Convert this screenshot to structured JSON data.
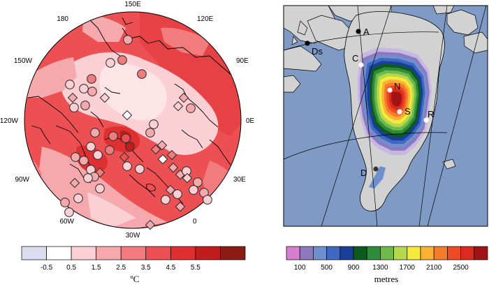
{
  "left_map": {
    "longitude_labels": {
      "top": "150E",
      "top_right": "120E",
      "right_top": "90E",
      "right": "0E",
      "right_bottom": "30E",
      "bottom_right": "0",
      "bottom": "30W",
      "bottom_left": "60W",
      "left_bottom": "90W",
      "left": "120W",
      "left_top": "150W",
      "top_left": "180"
    },
    "colorbar": {
      "tick_labels": [
        "-0.5",
        "0.5",
        "1.5",
        "2.5",
        "3.5",
        "4.5",
        "5.5"
      ],
      "units": "ºC",
      "colors": [
        "#dcdcf0",
        "#ffffff",
        "#fbd0d4",
        "#f6a9ad",
        "#f27b7e",
        "#ec5052",
        "#e02f30",
        "#c21d1d",
        "#8b1b14"
      ]
    },
    "markers": [
      {
        "shape": "circle",
        "level": 3
      },
      {
        "shape": "circle",
        "level": 2
      },
      {
        "shape": "circle",
        "level": 4
      },
      {
        "shape": "circle",
        "level": 4
      },
      {
        "shape": "circle",
        "level": 2
      },
      {
        "shape": "circle",
        "level": 4
      },
      {
        "shape": "circle",
        "level": 2
      },
      {
        "shape": "circle",
        "level": 3
      },
      {
        "shape": "diamond",
        "level": 3
      },
      {
        "shape": "diamond",
        "level": 2
      },
      {
        "shape": "circle",
        "level": 2
      },
      {
        "shape": "circle",
        "level": 3
      },
      {
        "shape": "diamond",
        "level": 1
      },
      {
        "shape": "diamond",
        "level": 3
      },
      {
        "shape": "diamond",
        "level": 2
      },
      {
        "shape": "circle",
        "level": 3
      },
      {
        "shape": "circle",
        "level": 2
      },
      {
        "shape": "circle",
        "level": 3
      },
      {
        "shape": "circle",
        "level": 4
      },
      {
        "shape": "circle",
        "level": 5
      },
      {
        "shape": "circle",
        "level": 7
      },
      {
        "shape": "circle",
        "level": 3
      },
      {
        "shape": "circle",
        "level": 2
      },
      {
        "shape": "circle",
        "level": 2
      },
      {
        "shape": "circle",
        "level": 4
      },
      {
        "shape": "diamond",
        "level": 3
      },
      {
        "shape": "diamond",
        "level": 4
      },
      {
        "shape": "circle",
        "level": 3
      },
      {
        "shape": "circle",
        "level": 3
      },
      {
        "shape": "diamond",
        "level": 4
      },
      {
        "shape": "diamond",
        "level": 1
      },
      {
        "shape": "diamond",
        "level": 3
      },
      {
        "shape": "circle",
        "level": 2
      },
      {
        "shape": "circle",
        "level": 2
      },
      {
        "shape": "diamond",
        "level": 5
      },
      {
        "shape": "diamond",
        "level": 4
      },
      {
        "shape": "circle",
        "level": 2
      },
      {
        "shape": "circle",
        "level": 3
      },
      {
        "shape": "circle",
        "level": 2
      },
      {
        "shape": "circle",
        "level": 2
      },
      {
        "shape": "diamond",
        "level": 3
      },
      {
        "shape": "circle",
        "level": 2
      },
      {
        "shape": "circle",
        "level": 3
      },
      {
        "shape": "circle",
        "level": 2
      },
      {
        "shape": "diamond",
        "level": 3
      },
      {
        "shape": "circle",
        "level": 2
      },
      {
        "shape": "diamond",
        "level": 2
      },
      {
        "shape": "circle",
        "level": 3
      },
      {
        "shape": "circle",
        "level": 2
      },
      {
        "shape": "circle",
        "level": 3
      },
      {
        "shape": "circle",
        "level": 2
      },
      {
        "shape": "diamond",
        "level": 3
      },
      {
        "shape": "circle",
        "level": 2
      },
      {
        "shape": "diamond",
        "level": 3
      },
      {
        "shape": "circle",
        "level": 2
      },
      {
        "shape": "diamond",
        "level": 3
      }
    ]
  },
  "right_map": {
    "sites": [
      {
        "id": "A",
        "label": "A",
        "color": "#000000"
      },
      {
        "id": "Ds",
        "label": "Ds",
        "color": "#000000"
      },
      {
        "id": "C",
        "label": "C",
        "color": "#ffffff"
      },
      {
        "id": "N",
        "label": "N",
        "color": "#ffffff"
      },
      {
        "id": "S",
        "label": "S",
        "color": "#ffffff"
      },
      {
        "id": "R",
        "label": "R",
        "color": "#ffffff"
      },
      {
        "id": "D",
        "label": "D",
        "color": "#333333"
      }
    ],
    "colorbar": {
      "tick_labels": [
        "100",
        "500",
        "900",
        "1300",
        "1700",
        "2100",
        "2500"
      ],
      "units": "metres",
      "colors": [
        "#d77fcf",
        "#8e78c0",
        "#6f90cf",
        "#3f68c3",
        "#1a3f9a",
        "#0c5a1e",
        "#2e8b3a",
        "#6fb84a",
        "#b6d84e",
        "#f5ea3c",
        "#f9b233",
        "#f47c2b",
        "#ee4a23",
        "#dd2a1f",
        "#a11414"
      ]
    },
    "colors": {
      "ocean": "#7f9bc5",
      "land": "#d2d2d2",
      "ice_edge": "#c7b7e3"
    }
  }
}
